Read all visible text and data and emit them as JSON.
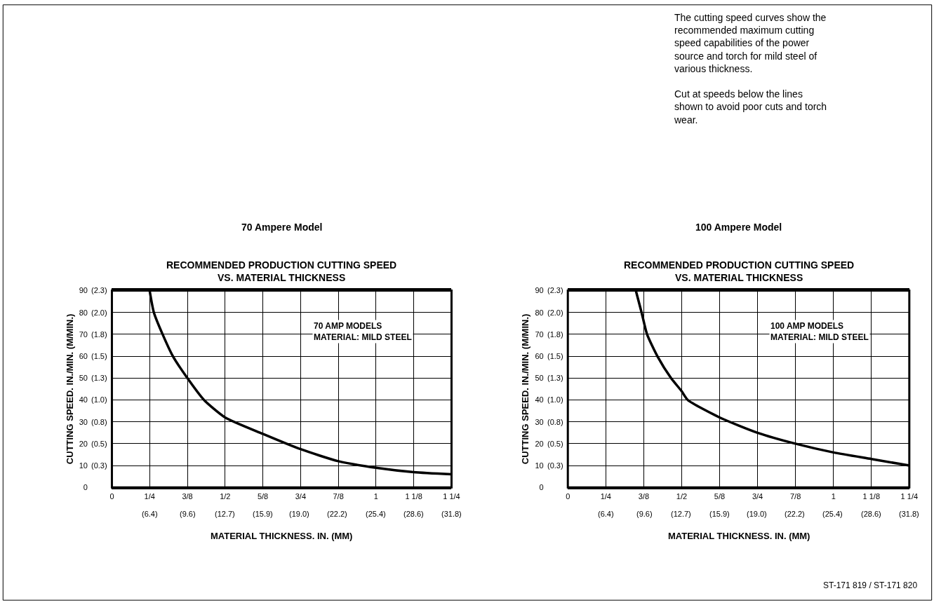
{
  "chart_data": [
    {
      "type": "line",
      "title": "70 Ampere Model",
      "subtitle": "RECOMMENDED PRODUCTION CUTTING SPEED\nVS. MATERIAL THICKNESS",
      "xlabel": "MATERIAL THICKNESS. IN. (MM)",
      "ylabel": "CUTTING SPEED. IN./MIN. (M/MIN.)",
      "annotations": [
        "70 AMP MODELS\nMATERIAL: MILD STEEL",
        "The cutting speed curves show the\nrecommended maximum cutting\nspeed capabilities of the power\nsource and torch for mild steel of\nvarious thickness.\n\nCut at speeds below the lines\nshown to avoid poor cuts and torch\nwear."
      ],
      "series": [
        {
          "color": "#000000",
          "x": [
            0.25,
            0.264,
            0.293,
            0.327,
            0.375,
            0.43,
            0.5,
            0.625,
            0.75,
            0.875,
            1,
            1.125,
            1.25
          ],
          "values": [
            90,
            80,
            70,
            60,
            50,
            40,
            32,
            24.5,
            17.5,
            12,
            9,
            7,
            6
          ]
        }
      ],
      "xlim": [
        0.125,
        1.25
      ],
      "ylim": [
        0,
        90
      ],
      "xticks": [
        {
          "value": 0.125,
          "label": "0"
        },
        {
          "value": 0.25,
          "label": "1/4"
        },
        {
          "value": 0.375,
          "label": "3/8"
        },
        {
          "value": 0.5,
          "label": "1/2"
        },
        {
          "value": 0.625,
          "label": "5/8"
        },
        {
          "value": 0.75,
          "label": "3/4"
        },
        {
          "value": 0.875,
          "label": "7/8"
        },
        1,
        {
          "value": 1.125,
          "label": "1 1/8"
        },
        {
          "value": 1.25,
          "label": "1 1/4"
        }
      ],
      "x2lim": [
        3.2,
        31.8
      ],
      "x2ticks": [
        {
          "value": 6.4,
          "label": "(6.4)"
        },
        {
          "value": 9.6,
          "label": "(9.6)"
        },
        {
          "value": 12.7,
          "label": "(12.7)"
        },
        {
          "value": 15.9,
          "label": "(15.9)"
        },
        {
          "value": 19.0,
          "label": "(19.0)"
        },
        {
          "value": 22.2,
          "label": "(22.2)"
        },
        {
          "value": 25.4,
          "label": "(25.4)"
        },
        {
          "value": 28.6,
          "label": "(28.6)"
        },
        {
          "value": 31.8,
          "label": "(31.8)"
        }
      ],
      "yticks": [
        0,
        10,
        20,
        30,
        40,
        50,
        60,
        70,
        80,
        90
      ],
      "y2lim": [
        0,
        2.286
      ],
      "y2ticks": [
        {
          "value": 0.254,
          "label": "(0.3)"
        },
        {
          "value": 0.508,
          "label": "(0.5)"
        },
        {
          "value": 0.762,
          "label": "(0.8)"
        },
        {
          "value": 1.016,
          "label": "(1.0)"
        },
        {
          "value": 1.27,
          "label": "(1.3)"
        },
        {
          "value": 1.524,
          "label": "(1.5)"
        },
        {
          "value": 1.778,
          "label": "(1.8)"
        },
        {
          "value": 2.032,
          "label": "(2.0)"
        },
        {
          "value": 2.286,
          "label": "(2.3)"
        }
      ],
      "grid": true,
      "marker": "none",
      "line_style": "solid"
    },
    {
      "type": "line",
      "title": "100 Ampere Model",
      "subtitle": "RECOMMENDED PRODUCTION CUTTING SPEED\nVS. MATERIAL THICKNESS",
      "xlabel": "MATERIAL THICKNESS. IN. (MM)",
      "ylabel": "CUTTING SPEED. IN./MIN. (M/MIN.)",
      "annotations": [
        "100 AMP MODELS\nMATERIAL: MILD STEEL",
        "ST-171 819 / ST-171 820"
      ],
      "series": [
        {
          "color": "#000000",
          "x": [
            0.349,
            0.368,
            0.386,
            0.42,
            0.465,
            0.5,
            0.52,
            0.625,
            0.75,
            0.875,
            1,
            1.125,
            1.25
          ],
          "values": [
            90,
            80,
            70,
            60,
            50,
            44,
            40,
            32,
            25,
            20,
            16,
            13,
            10
          ]
        }
      ],
      "xlim": [
        0.125,
        1.25
      ],
      "ylim": [
        0,
        90
      ],
      "xticks": [
        {
          "value": 0.125,
          "label": "0"
        },
        {
          "value": 0.25,
          "label": "1/4"
        },
        {
          "value": 0.375,
          "label": "3/8"
        },
        {
          "value": 0.5,
          "label": "1/2"
        },
        {
          "value": 0.625,
          "label": "5/8"
        },
        {
          "value": 0.75,
          "label": "3/4"
        },
        {
          "value": 0.875,
          "label": "7/8"
        },
        1,
        {
          "value": 1.125,
          "label": "1 1/8"
        },
        {
          "value": 1.25,
          "label": "1 1/4"
        }
      ],
      "x2lim": [
        3.2,
        31.8
      ],
      "x2ticks": [
        {
          "value": 6.4,
          "label": "(6.4)"
        },
        {
          "value": 9.6,
          "label": "(9.6)"
        },
        {
          "value": 12.7,
          "label": "(12.7)"
        },
        {
          "value": 15.9,
          "label": "(15.9)"
        },
        {
          "value": 19.0,
          "label": "(19.0)"
        },
        {
          "value": 22.2,
          "label": "(22.2)"
        },
        {
          "value": 25.4,
          "label": "(25.4)"
        },
        {
          "value": 28.6,
          "label": "(28.6)"
        },
        {
          "value": 31.8,
          "label": "(31.8)"
        }
      ],
      "yticks": [
        0,
        10,
        20,
        30,
        40,
        50,
        60,
        70,
        80,
        90
      ],
      "y2lim": [
        0,
        2.286
      ],
      "y2ticks": [
        {
          "value": 0.254,
          "label": "(0.3)"
        },
        {
          "value": 0.508,
          "label": "(0.5)"
        },
        {
          "value": 0.762,
          "label": "(0.8)"
        },
        {
          "value": 1.016,
          "label": "(1.0)"
        },
        {
          "value": 1.27,
          "label": "(1.3)"
        },
        {
          "value": 1.524,
          "label": "(1.5)"
        },
        {
          "value": 1.778,
          "label": "(1.8)"
        },
        {
          "value": 2.032,
          "label": "(2.0)"
        },
        {
          "value": 2.286,
          "label": "(2.3)"
        }
      ],
      "grid": true,
      "marker": "none",
      "line_style": "solid"
    }
  ]
}
